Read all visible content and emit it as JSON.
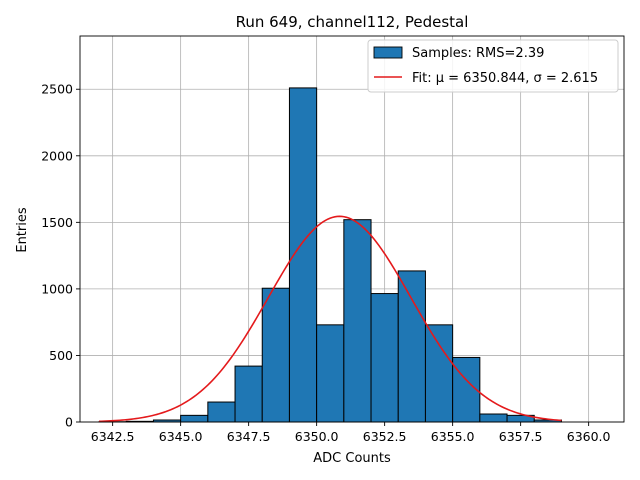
{
  "chart_data": {
    "type": "bar",
    "title": "Run 649, channel112, Pedestal",
    "xlabel": "ADC Counts",
    "ylabel": "Entries",
    "xlim": [
      6341.3,
      6361.3
    ],
    "ylim": [
      0,
      2900
    ],
    "grid": true,
    "legend_position": "top-right",
    "x_ticks": [
      {
        "value": 6342.5,
        "label": "6342.5"
      },
      {
        "value": 6345.0,
        "label": "6345.0"
      },
      {
        "value": 6347.5,
        "label": "6347.5"
      },
      {
        "value": 6350.0,
        "label": "6350.0"
      },
      {
        "value": 6352.5,
        "label": "6352.5"
      },
      {
        "value": 6355.0,
        "label": "6355.0"
      },
      {
        "value": 6357.5,
        "label": "6357.5"
      },
      {
        "value": 6360.0,
        "label": "6360.0"
      }
    ],
    "y_ticks": [
      {
        "value": 0,
        "label": "0"
      },
      {
        "value": 500,
        "label": "500"
      },
      {
        "value": 1000,
        "label": "1000"
      },
      {
        "value": 1500,
        "label": "1500"
      },
      {
        "value": 2000,
        "label": "2000"
      },
      {
        "value": 2500,
        "label": "2500"
      }
    ],
    "histogram": {
      "name": "Samples: RMS=2.39",
      "color": "#1f77b4",
      "edge_color": "#000000",
      "bin_edges": [
        6342,
        6343,
        6344,
        6345,
        6346,
        6347,
        6348,
        6349,
        6350,
        6351,
        6352,
        6353,
        6354,
        6355,
        6356,
        6357,
        6358,
        6359
      ],
      "counts": [
        2,
        5,
        15,
        50,
        150,
        420,
        1005,
        2510,
        730,
        1520,
        965,
        1135,
        730,
        485,
        60,
        50,
        15
      ]
    },
    "fit": {
      "name": "Fit: μ = 6350.844, σ = 2.615",
      "color": "#e41a1c",
      "mu": 6350.844,
      "sigma": 2.615,
      "amplitude": 1545,
      "x_range": [
        6342,
        6359
      ]
    }
  }
}
